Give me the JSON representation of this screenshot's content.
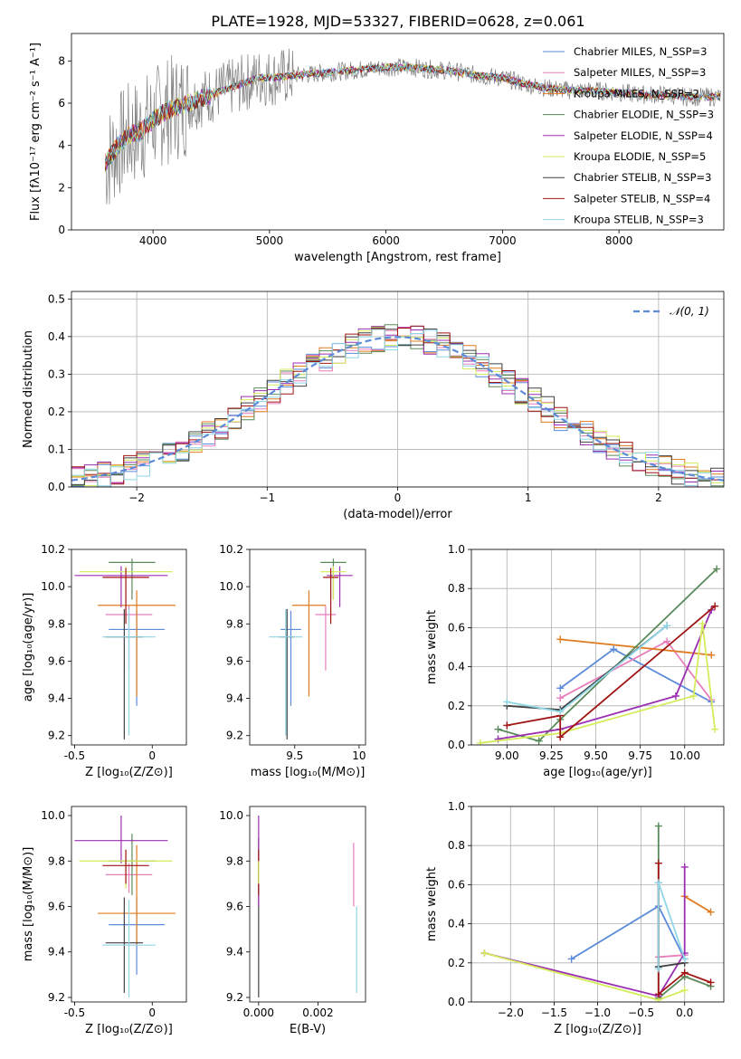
{
  "figure": {
    "title": "PLATE=1928, MJD=53327, FIBERID=0628, z=0.061",
    "series_colors": [
      "#5b8bd9",
      "#e87dbc",
      "#e07b1f",
      "#5a8a5a",
      "#9b2fb0",
      "#d4ec5a",
      "#404040",
      "#a01414",
      "#8fd6e6"
    ]
  },
  "chart_data": [
    {
      "id": "spectrum",
      "type": "line",
      "xlabel": "wavelength [Angstrom, rest frame]",
      "ylabel": "Flux [fλ10⁻¹⁷ erg cm⁻² s⁻¹ A⁻¹]",
      "xlim": [
        3300,
        8900
      ],
      "ylim": [
        0,
        9.3
      ],
      "xticks": [
        4000,
        5000,
        6000,
        7000,
        8000
      ],
      "yticks": [
        0,
        2,
        4,
        6,
        8
      ],
      "grid": false,
      "legend_position": "right",
      "data_series": {
        "name": "data",
        "color": "#808080"
      },
      "legend": [
        "Chabrier MILES, N_SSP=3",
        "Salpeter MILES, N_SSP=3",
        "Kroupa MILES, N_SSP=2",
        "Chabrier ELODIE, N_SSP=3",
        "Salpeter ELODIE, N_SSP=4",
        "Kroupa ELODIE, N_SSP=5",
        "Chabrier STELIB, N_SSP=3",
        "Salpeter STELIB, N_SSP=4",
        "Kroupa STELIB, N_SSP=3"
      ],
      "legend_colors": [
        "#5b8bd9",
        "#e87dbc",
        "#e07b1f",
        "#5a8a5a",
        "#9b2fb0",
        "#d4ec5a",
        "#404040",
        "#a01414",
        "#8fd6e6"
      ],
      "model_envelope": {
        "x": [
          3600,
          3700,
          3800,
          3900,
          4000,
          4100,
          4200,
          4300,
          4400,
          4500,
          4600,
          4700,
          4800,
          4900,
          5000,
          5200,
          5400,
          5600,
          5800,
          6000,
          6200,
          6400,
          6600,
          6800,
          7000,
          7200,
          7400,
          7600,
          7800,
          8000,
          8200,
          8400,
          8600,
          8800
        ],
        "y": [
          3.2,
          4.0,
          4.5,
          4.7,
          5.2,
          5.6,
          5.8,
          6.0,
          6.2,
          6.4,
          6.6,
          6.8,
          7.0,
          7.2,
          7.2,
          7.3,
          7.4,
          7.5,
          7.6,
          7.7,
          7.7,
          7.6,
          7.5,
          7.3,
          7.2,
          6.9,
          6.7,
          6.6,
          6.6,
          6.5,
          6.4,
          6.4,
          6.3,
          6.3
        ]
      }
    },
    {
      "id": "residuals",
      "type": "step",
      "xlabel": "(data-model)/error",
      "ylabel": "Normed distribution",
      "xlim": [
        -2.5,
        2.5
      ],
      "ylim": [
        0,
        0.52
      ],
      "xticks": [
        -2,
        -1,
        0,
        1,
        2
      ],
      "xtick_labels": [
        "−2",
        "−1",
        "0",
        "1",
        "2"
      ],
      "yticks": [
        0.0,
        0.1,
        0.2,
        0.3,
        0.4,
        0.5
      ],
      "grid": true,
      "legend_position": "top-right",
      "legend": [
        "𝒩(0, 1)"
      ],
      "reference_curve": {
        "name": "𝒩(0, 1)",
        "mean": 0,
        "sd": 1,
        "color": "#5b8bd9",
        "style": "dashed"
      },
      "bin_width": 0.1
    },
    {
      "id": "age-vs-Z",
      "type": "errorbar",
      "xlabel": "Z [log₁₀(Z/Z⊙)]",
      "ylabel": "age  [log₁₀(age/yr)]",
      "xlim": [
        -0.52,
        0.22
      ],
      "ylim": [
        9.15,
        10.2
      ],
      "xticks": [
        -0.5,
        0.0
      ],
      "yticks": [
        9.2,
        9.4,
        9.6,
        9.8,
        10.0,
        10.2
      ],
      "grid": false,
      "points": [
        {
          "x": -0.1,
          "xerr": 0.18,
          "y": 9.77,
          "yerr": [
            0.41,
            0.1
          ],
          "color": "#5b8bd9"
        },
        {
          "x": -0.15,
          "xerr": 0.15,
          "y": 9.85,
          "yerr": [
            0.3,
            0.05
          ],
          "color": "#e87dbc"
        },
        {
          "x": -0.1,
          "xerr": 0.25,
          "y": 9.9,
          "yerr": [
            0.49,
            0.08
          ],
          "color": "#e07b1f"
        },
        {
          "x": -0.13,
          "xerr": 0.15,
          "y": 10.13,
          "yerr": [
            0.2,
            0.02
          ],
          "color": "#5a8a5a"
        },
        {
          "x": -0.2,
          "xerr": 0.3,
          "y": 10.06,
          "yerr": [
            0.17,
            0.05
          ],
          "color": "#9b2fb0"
        },
        {
          "x": -0.17,
          "xerr": 0.3,
          "y": 10.08,
          "yerr": [
            0.15,
            0.03
          ],
          "color": "#d4ec5a"
        },
        {
          "x": -0.18,
          "xerr": 0.12,
          "y": 9.73,
          "yerr": [
            0.55,
            0.15
          ],
          "color": "#404040"
        },
        {
          "x": -0.17,
          "xerr": 0.15,
          "y": 10.05,
          "yerr": [
            0.25,
            0.05
          ],
          "color": "#a01414"
        },
        {
          "x": -0.15,
          "xerr": 0.17,
          "y": 9.73,
          "yerr": [
            0.53,
            0.15
          ],
          "color": "#8fd6e6"
        }
      ]
    },
    {
      "id": "age-vs-mass",
      "type": "errorbar",
      "xlabel": "mass [log₁₀(M/M⊙)]",
      "ylabel": "",
      "xlim": [
        9.15,
        10.05
      ],
      "ylim": [
        9.15,
        10.2
      ],
      "xticks": [
        9.5,
        10.0
      ],
      "yticks": [
        9.2,
        9.4,
        9.6,
        9.8,
        10.0,
        10.2
      ],
      "grid": false,
      "points": [
        {
          "x": 9.47,
          "xerr": 0.08,
          "y": 9.77,
          "yerr": [
            0.41,
            0.1
          ],
          "color": "#5b8bd9"
        },
        {
          "x": 9.74,
          "xerr": 0.08,
          "y": 9.85,
          "yerr": [
            0.3,
            0.05
          ],
          "color": "#e87dbc"
        },
        {
          "x": 9.61,
          "xerr": 0.13,
          "y": 9.9,
          "yerr": [
            0.49,
            0.08
          ],
          "color": "#e07b1f"
        },
        {
          "x": 9.8,
          "xerr": 0.1,
          "y": 10.13,
          "yerr": [
            0.2,
            0.02
          ],
          "color": "#5a8a5a"
        },
        {
          "x": 9.85,
          "xerr": 0.1,
          "y": 10.06,
          "yerr": [
            0.17,
            0.05
          ],
          "color": "#9b2fb0"
        },
        {
          "x": 9.8,
          "xerr": 0.1,
          "y": 10.08,
          "yerr": [
            0.15,
            0.03
          ],
          "color": "#d4ec5a"
        },
        {
          "x": 9.44,
          "xerr": 0.06,
          "y": 9.73,
          "yerr": [
            0.55,
            0.15
          ],
          "color": "#404040"
        },
        {
          "x": 9.78,
          "xerr": 0.06,
          "y": 10.05,
          "yerr": [
            0.25,
            0.05
          ],
          "color": "#a01414"
        },
        {
          "x": 9.43,
          "xerr": 0.13,
          "y": 9.73,
          "yerr": [
            0.53,
            0.15
          ],
          "color": "#8fd6e6"
        }
      ]
    },
    {
      "id": "weight-vs-age",
      "type": "line",
      "xlabel": "age  [log₁₀(age/yr)]",
      "ylabel": "mass weight",
      "xlim": [
        8.8,
        10.22
      ],
      "ylim": [
        0,
        1.0
      ],
      "xticks": [
        9.0,
        9.25,
        9.5,
        9.75,
        10.0
      ],
      "xtick_labels": [
        "9.00",
        "9.25",
        "9.50",
        "9.75",
        "10.00"
      ],
      "yticks": [
        0.0,
        0.2,
        0.4,
        0.6,
        0.8,
        1.0
      ],
      "grid": true,
      "series": [
        {
          "color": "#5b8bd9",
          "x": [
            9.3,
            9.6,
            10.15
          ],
          "y": [
            0.29,
            0.49,
            0.22
          ]
        },
        {
          "color": "#e87dbc",
          "x": [
            9.3,
            9.9,
            10.15
          ],
          "y": [
            0.24,
            0.53,
            0.23
          ]
        },
        {
          "color": "#e07b1f",
          "x": [
            9.3,
            10.15
          ],
          "y": [
            0.54,
            0.46
          ]
        },
        {
          "color": "#5a8a5a",
          "x": [
            8.95,
            9.18,
            9.3,
            10.18
          ],
          "y": [
            0.08,
            0.02,
            0.13,
            0.9
          ]
        },
        {
          "color": "#9b2fb0",
          "x": [
            8.95,
            9.3,
            9.95,
            10.15
          ],
          "y": [
            0.03,
            0.08,
            0.25,
            0.69
          ]
        },
        {
          "color": "#d4ec5a",
          "x": [
            8.85,
            9.3,
            10.05,
            10.1,
            10.17
          ],
          "y": [
            0.01,
            0.06,
            0.25,
            0.62,
            0.08
          ]
        },
        {
          "color": "#404040",
          "x": [
            9.0,
            9.3,
            9.9
          ],
          "y": [
            0.2,
            0.18,
            0.61
          ]
        },
        {
          "color": "#a01414",
          "x": [
            9.0,
            9.3,
            9.3,
            10.17
          ],
          "y": [
            0.1,
            0.15,
            0.04,
            0.71
          ]
        },
        {
          "color": "#8fd6e6",
          "x": [
            9.0,
            9.3,
            9.9
          ],
          "y": [
            0.22,
            0.17,
            0.61
          ]
        }
      ]
    },
    {
      "id": "mass-vs-Z",
      "type": "errorbar",
      "xlabel": "Z [log₁₀(Z/Z⊙)]",
      "ylabel": "mass [log₁₀(M/M⊙)]",
      "xlim": [
        -0.52,
        0.22
      ],
      "ylim": [
        9.18,
        10.04
      ],
      "xticks": [
        -0.5,
        0.0
      ],
      "yticks": [
        9.2,
        9.4,
        9.6,
        9.8,
        10.0
      ],
      "grid": false,
      "points": [
        {
          "x": -0.1,
          "xerr": 0.18,
          "y": 9.52,
          "yerr": [
            0.22,
            0.12
          ],
          "color": "#5b8bd9"
        },
        {
          "x": -0.15,
          "xerr": 0.15,
          "y": 9.74,
          "yerr": [
            0.08,
            0.05
          ],
          "color": "#e87dbc"
        },
        {
          "x": -0.1,
          "xerr": 0.25,
          "y": 9.57,
          "yerr": [
            0.14,
            0.3
          ],
          "color": "#e07b1f"
        },
        {
          "x": -0.13,
          "xerr": 0.15,
          "y": 9.8,
          "yerr": [
            0.15,
            0.12
          ],
          "color": "#5a8a5a"
        },
        {
          "x": -0.2,
          "xerr": 0.3,
          "y": 9.89,
          "yerr": [
            0.1,
            0.11
          ],
          "color": "#9b2fb0"
        },
        {
          "x": -0.17,
          "xerr": 0.3,
          "y": 9.8,
          "yerr": [
            0.12,
            0.05
          ],
          "color": "#d4ec5a"
        },
        {
          "x": -0.18,
          "xerr": 0.12,
          "y": 9.44,
          "yerr": [
            0.22,
            0.2
          ],
          "color": "#404040"
        },
        {
          "x": -0.17,
          "xerr": 0.15,
          "y": 9.78,
          "yerr": [
            0.08,
            0.07
          ],
          "color": "#a01414"
        },
        {
          "x": -0.15,
          "xerr": 0.17,
          "y": 9.43,
          "yerr": [
            0.23,
            0.2
          ],
          "color": "#8fd6e6"
        }
      ]
    },
    {
      "id": "mass-vs-EBV",
      "type": "errorbar",
      "xlabel": "E(B-V)",
      "ylabel": "",
      "xlim": [
        -0.0003,
        0.0036
      ],
      "ylim": [
        9.18,
        10.04
      ],
      "xticks": [
        0.0,
        0.002
      ],
      "xtick_labels": [
        "0.000",
        "0.002"
      ],
      "yticks": [
        9.2,
        9.4,
        9.6,
        9.8,
        10.0
      ],
      "grid": false,
      "segments": [
        {
          "x": 0.0,
          "y0": 9.2,
          "y1": 9.9,
          "color": "#404040"
        },
        {
          "x": 0.0,
          "y0": 9.6,
          "y1": 10.0,
          "color": "#9b2fb0"
        },
        {
          "x": 0.0,
          "y0": 9.65,
          "y1": 9.85,
          "color": "#a01414"
        },
        {
          "x": 0.0,
          "y0": 9.7,
          "y1": 9.8,
          "color": "#d4ec5a"
        },
        {
          "x": 0.0032,
          "y0": 9.6,
          "y1": 9.88,
          "color": "#e87dbc"
        },
        {
          "x": 0.0033,
          "y0": 9.22,
          "y1": 9.6,
          "color": "#8fd6e6"
        }
      ]
    },
    {
      "id": "weight-vs-Z",
      "type": "line",
      "xlabel": "Z [log₁₀(Z/Z⊙)]",
      "ylabel": "mass weight",
      "xlim": [
        -2.45,
        0.45
      ],
      "ylim": [
        0,
        1.0
      ],
      "xticks": [
        -2.0,
        -1.5,
        -1.0,
        -0.5,
        0.0
      ],
      "xtick_labels": [
        "−2.0",
        "−1.5",
        "−1.0",
        "−0.5",
        "0.0"
      ],
      "yticks": [
        0.0,
        0.2,
        0.4,
        0.6,
        0.8,
        1.0
      ],
      "grid": true,
      "series": [
        {
          "color": "#5b8bd9",
          "x": [
            -1.3,
            -0.3,
            0.0
          ],
          "y": [
            0.22,
            0.49,
            0.22
          ]
        },
        {
          "color": "#e87dbc",
          "x": [
            -0.3,
            0.0
          ],
          "y": [
            0.23,
            0.24
          ]
        },
        {
          "color": "#e07b1f",
          "x": [
            0.0,
            0.3
          ],
          "y": [
            0.54,
            0.46
          ]
        },
        {
          "color": "#5a8a5a",
          "x": [
            -0.3,
            -0.3,
            0.0,
            0.3
          ],
          "y": [
            0.9,
            0.02,
            0.13,
            0.08
          ]
        },
        {
          "color": "#9b2fb0",
          "x": [
            -2.3,
            -0.3,
            0.0,
            0.0
          ],
          "y": [
            0.25,
            0.03,
            0.25,
            0.69
          ]
        },
        {
          "color": "#d4ec5a",
          "x": [
            -2.3,
            -0.3,
            0.0
          ],
          "y": [
            0.25,
            0.01,
            0.06
          ]
        },
        {
          "color": "#404040",
          "x": [
            0.0,
            -0.3,
            -0.3
          ],
          "y": [
            0.2,
            0.18,
            0.61
          ]
        },
        {
          "color": "#a01414",
          "x": [
            -0.3,
            -0.3,
            0.0,
            0.3
          ],
          "y": [
            0.71,
            0.04,
            0.15,
            0.1
          ]
        },
        {
          "color": "#8fd6e6",
          "x": [
            -0.3,
            -0.3,
            0.0
          ],
          "y": [
            0.17,
            0.61,
            0.22
          ]
        }
      ]
    }
  ]
}
